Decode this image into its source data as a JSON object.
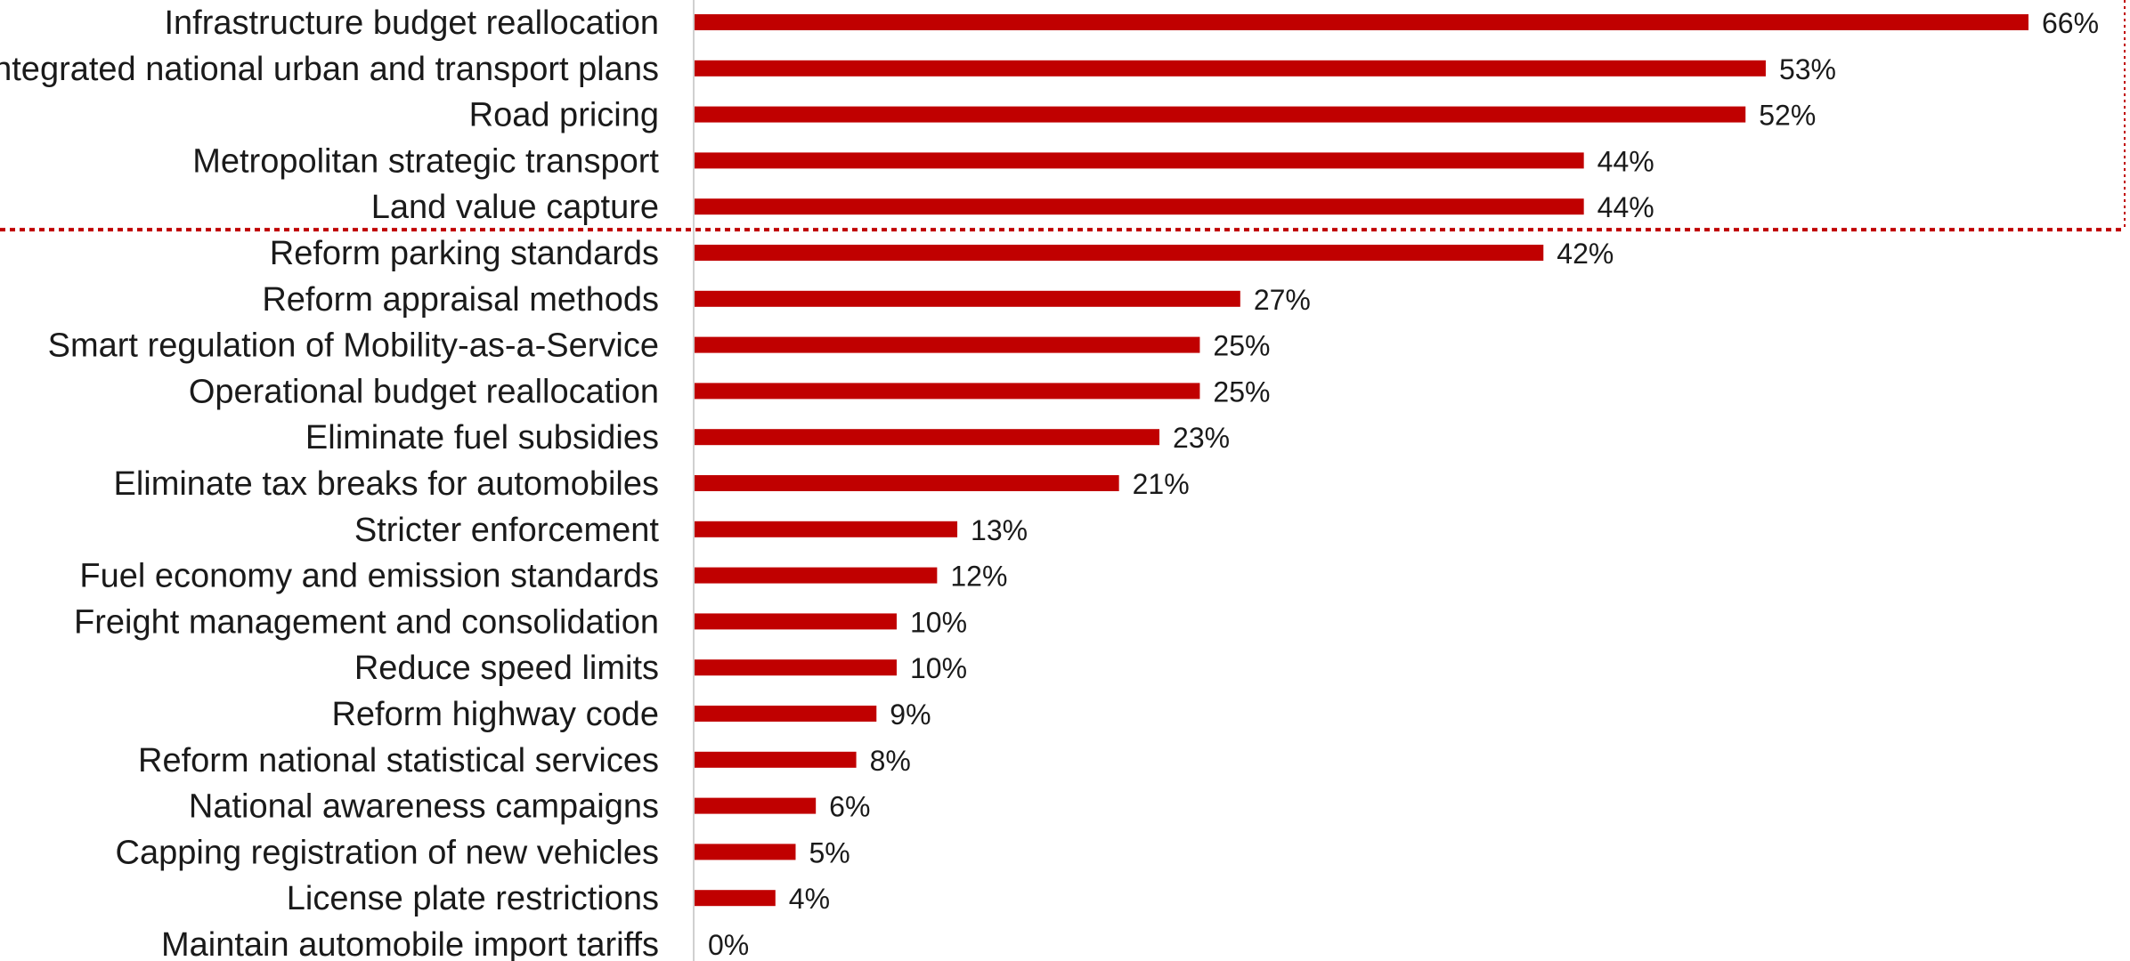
{
  "chart_data": {
    "type": "bar",
    "orientation": "horizontal",
    "title": "",
    "xlabel": "",
    "ylabel": "",
    "xlim": [
      0,
      66
    ],
    "grid": false,
    "bar_color": "#c00000",
    "highlight_color": "#c00000",
    "highlight_top_n": 5,
    "categories": [
      "Infrastructure budget reallocation",
      "Integrated national urban and transport plans",
      "Road pricing",
      "Metropolitan strategic transport",
      "Land value capture",
      "Reform parking standards",
      "Reform appraisal methods",
      "Smart regulation of Mobility-as-a-Service",
      "Operational budget reallocation",
      "Eliminate fuel subsidies",
      "Eliminate tax breaks for automobiles",
      "Stricter enforcement",
      "Fuel economy and emission standards",
      "Freight management and consolidation",
      "Reduce speed limits",
      "Reform highway code",
      "Reform national statistical services",
      "National awareness campaigns",
      "Capping registration of new vehicles",
      "License plate restrictions",
      "Maintain automobile import tariffs"
    ],
    "values": [
      66,
      53,
      52,
      44,
      44,
      42,
      27,
      25,
      25,
      23,
      21,
      13,
      12,
      10,
      10,
      9,
      8,
      6,
      5,
      4,
      0
    ],
    "value_labels": [
      "66%",
      "53%",
      "52%",
      "44%",
      "44%",
      "42%",
      "27%",
      "25%",
      "25%",
      "23%",
      "21%",
      "13%",
      "12%",
      "10%",
      "10%",
      "9%",
      "8%",
      "6%",
      "5%",
      "4%",
      "0%"
    ]
  }
}
